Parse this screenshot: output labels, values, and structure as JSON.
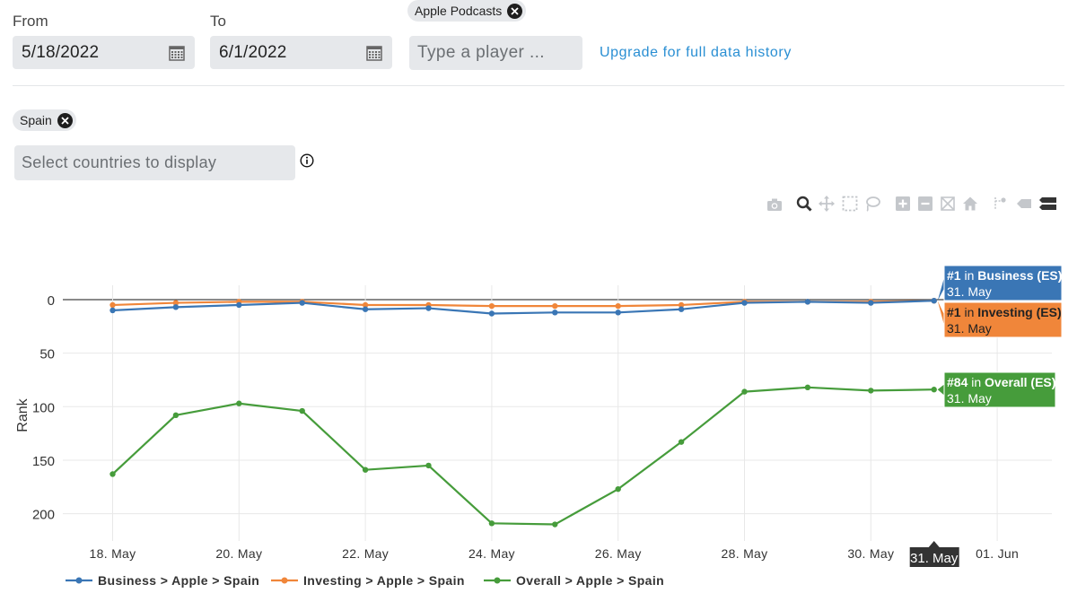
{
  "filters": {
    "from_label": "From",
    "from_value": "5/18/2022",
    "to_label": "To",
    "to_value": "6/1/2022",
    "platform_chip": "Apple Podcasts",
    "player_placeholder": "Type a player ...",
    "upgrade_link": "Upgrade for full data history",
    "country_chip": "Spain",
    "countries_placeholder": "Select countries to display",
    "info_icon": "info-circle-icon"
  },
  "toolbar": {
    "icons": [
      "camera-icon",
      "zoom-icon",
      "pan-icon",
      "box-select-icon",
      "lasso-select-icon",
      "zoom-in-icon",
      "zoom-out-icon",
      "autoscale-icon",
      "reset-axes-icon",
      "spike-lines-icon",
      "hover-closest-icon",
      "hover-compare-icon"
    ]
  },
  "chart_data": {
    "type": "line",
    "ylabel": "Rank",
    "y_reversed": true,
    "ylim": [
      0,
      210
    ],
    "yticks": [
      0,
      50,
      100,
      150,
      200
    ],
    "x": [
      "2022-05-18",
      "2022-05-19",
      "2022-05-20",
      "2022-05-21",
      "2022-05-22",
      "2022-05-23",
      "2022-05-24",
      "2022-05-25",
      "2022-05-26",
      "2022-05-27",
      "2022-05-28",
      "2022-05-29",
      "2022-05-30",
      "2022-05-31"
    ],
    "xtick_labels": [
      "18. May",
      "20. May",
      "22. May",
      "24. May",
      "26. May",
      "28. May",
      "30. May",
      "01. Jun"
    ],
    "xtick_dates": [
      "2022-05-18",
      "2022-05-20",
      "2022-05-22",
      "2022-05-24",
      "2022-05-26",
      "2022-05-28",
      "2022-05-30",
      "2022-06-01"
    ],
    "hover_x_label": "31. May",
    "grid": true,
    "legend_position": "bottom",
    "series": [
      {
        "name": "Business > Apple > Spain",
        "color": "#3a76b5",
        "values": [
          10,
          7,
          5,
          3,
          9,
          8,
          13,
          12,
          12,
          9,
          3,
          2,
          3,
          1
        ],
        "tooltip": {
          "rank": "#1",
          "in": "in",
          "category": "Business (ES)",
          "date": "31. May"
        }
      },
      {
        "name": "Investing > Apple > Spain",
        "color": "#f0863a",
        "values": [
          5,
          3,
          2,
          2,
          5,
          5,
          6,
          6,
          6,
          5,
          2,
          2,
          2,
          1
        ],
        "tooltip": {
          "rank": "#1",
          "in": "in",
          "category": "Investing (ES)",
          "date": "31. May"
        }
      },
      {
        "name": "Overall > Apple > Spain",
        "color": "#469c3b",
        "values": [
          163,
          108,
          97,
          104,
          159,
          155,
          209,
          210,
          177,
          133,
          86,
          82,
          85,
          84
        ],
        "tooltip": {
          "rank": "#84",
          "in": "in",
          "category": "Overall (ES)",
          "date": "31. May"
        }
      }
    ]
  }
}
